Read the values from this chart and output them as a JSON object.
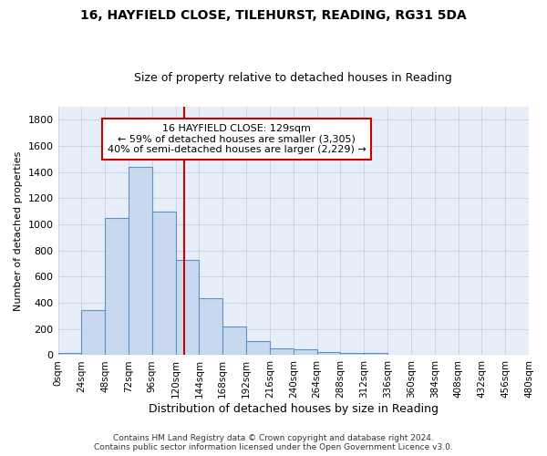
{
  "title_line1": "16, HAYFIELD CLOSE, TILEHURST, READING, RG31 5DA",
  "title_line2": "Size of property relative to detached houses in Reading",
  "xlabel": "Distribution of detached houses by size in Reading",
  "ylabel": "Number of detached properties",
  "footer_line1": "Contains HM Land Registry data © Crown copyright and database right 2024.",
  "footer_line2": "Contains public sector information licensed under the Open Government Licence v3.0.",
  "annotation_line1": "16 HAYFIELD CLOSE: 129sqm",
  "annotation_line2": "← 59% of detached houses are smaller (3,305)",
  "annotation_line3": "40% of semi-detached houses are larger (2,229) →",
  "property_size": 129,
  "bin_width": 24,
  "bin_starts": [
    0,
    24,
    48,
    72,
    96,
    120,
    144,
    168,
    192,
    216,
    240,
    264,
    288,
    312,
    336,
    360,
    384,
    408,
    432,
    456
  ],
  "bar_heights": [
    20,
    345,
    1050,
    1440,
    1095,
    725,
    435,
    220,
    105,
    55,
    45,
    25,
    20,
    15,
    0,
    0,
    0,
    0,
    0,
    0
  ],
  "bar_color": "#c8d8ee",
  "bar_edgecolor": "#6090c8",
  "vline_color": "#cc0000",
  "vline_x": 129,
  "ylim": [
    0,
    1900
  ],
  "xlim": [
    0,
    480
  ],
  "yticks": [
    0,
    200,
    400,
    600,
    800,
    1000,
    1200,
    1400,
    1600,
    1800
  ],
  "xtick_labels": [
    "0sqm",
    "24sqm",
    "48sqm",
    "72sqm",
    "96sqm",
    "120sqm",
    "144sqm",
    "168sqm",
    "192sqm",
    "216sqm",
    "240sqm",
    "264sqm",
    "288sqm",
    "312sqm",
    "336sqm",
    "360sqm",
    "384sqm",
    "408sqm",
    "432sqm",
    "456sqm",
    "480sqm"
  ],
  "xtick_positions": [
    0,
    24,
    48,
    72,
    96,
    120,
    144,
    168,
    192,
    216,
    240,
    264,
    288,
    312,
    336,
    360,
    384,
    408,
    432,
    456,
    480
  ],
  "bg_color": "#ffffff",
  "plot_bg_color": "#e8eef8",
  "grid_color": "#c8d4e8",
  "annotation_box_edgecolor": "#cc0000",
  "annotation_box_facecolor": "#ffffff",
  "title1_fontsize": 10,
  "title2_fontsize": 9,
  "ylabel_fontsize": 8,
  "xlabel_fontsize": 9,
  "ytick_fontsize": 8,
  "xtick_fontsize": 7.5,
  "footer_fontsize": 6.5,
  "annot_fontsize": 8
}
